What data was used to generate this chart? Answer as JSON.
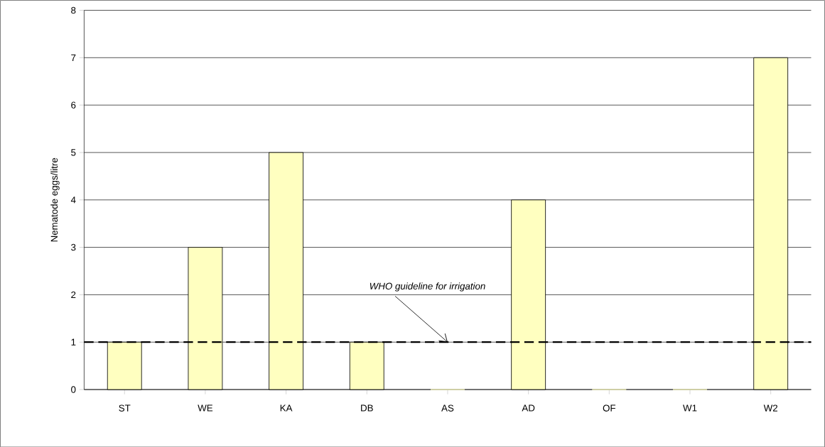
{
  "chart_data": {
    "type": "bar",
    "ylabel": "Nematode eggs/litre",
    "categories": [
      "ST",
      "WE",
      "KA",
      "DB",
      "AS",
      "AD",
      "OF",
      "W1",
      "W2"
    ],
    "values": [
      1,
      3,
      5,
      1,
      0,
      4,
      0,
      0,
      7
    ],
    "color": "#ffffc0",
    "ylim": [
      0,
      8
    ],
    "yticks": [
      0,
      1,
      2,
      3,
      4,
      5,
      6,
      7,
      8
    ],
    "grid": "y",
    "ref_lines": [
      {
        "axis": "y",
        "value": 1,
        "color": "#000000",
        "line_style": "dashed"
      }
    ],
    "annotations": [
      {
        "text": "WHO guideline for irrigation",
        "x": "AS",
        "y": 1
      }
    ]
  }
}
